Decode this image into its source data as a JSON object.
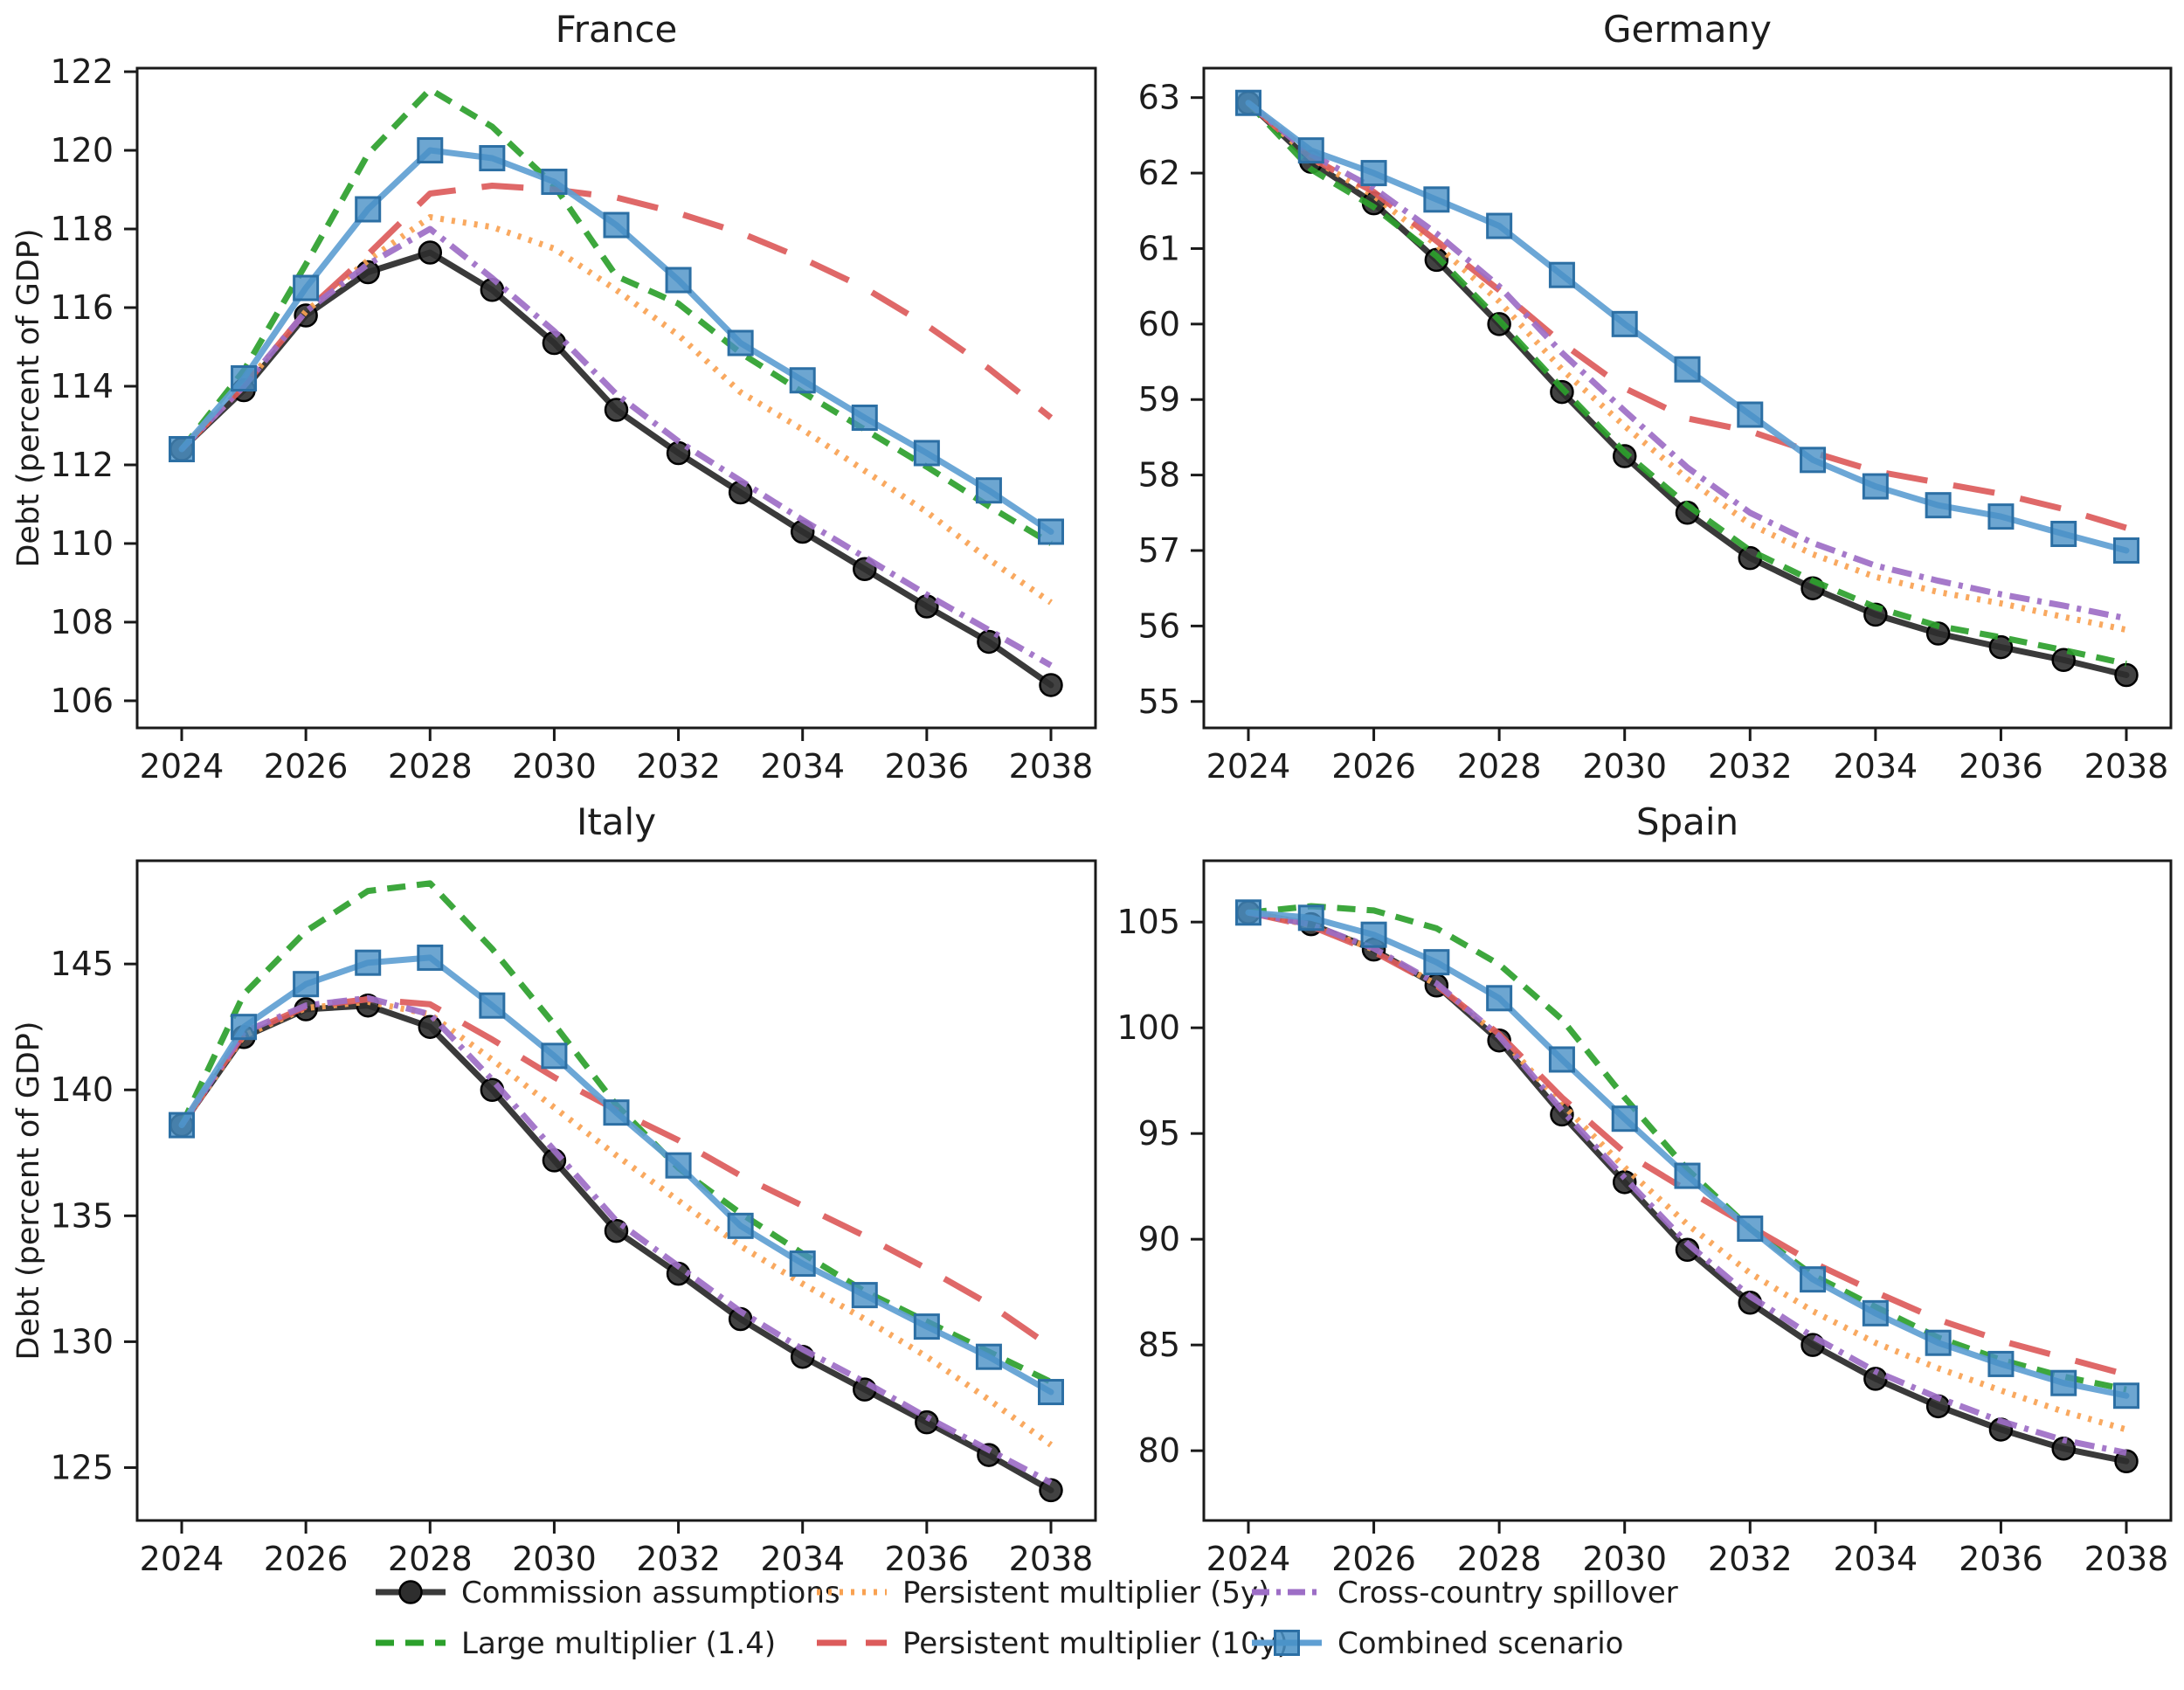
{
  "figure": {
    "ylabel": "Debt (percent of GDP)",
    "years": [
      2024,
      2025,
      2026,
      2027,
      2028,
      2029,
      2030,
      2031,
      2032,
      2033,
      2034,
      2035,
      2036,
      2037,
      2038
    ],
    "xticks": [
      2024,
      2026,
      2028,
      2030,
      2032,
      2034,
      2036,
      2038
    ]
  },
  "scenarios": [
    {
      "id": "commission",
      "label": "Commission assumptions",
      "color": "#3a3a3a",
      "line": "solid",
      "marker": "circle",
      "marker_fill": "#2e2e2e",
      "marker_edge": "#000000"
    },
    {
      "id": "large_multiplier",
      "label": "Large multiplier (1.4)",
      "color": "#2ca02c",
      "line": "dashed",
      "marker": "none"
    },
    {
      "id": "persistent_5y",
      "label": "Persistent multiplier (5y)",
      "color": "#f9a252",
      "line": "dotted",
      "marker": "none"
    },
    {
      "id": "persistent_10y",
      "label": "Persistent multiplier (10y)",
      "color": "#dc5b5b",
      "line": "longdash",
      "marker": "none"
    },
    {
      "id": "spillover",
      "label": "Cross-country spillover",
      "color": "#9d6ec6",
      "line": "dashdot",
      "marker": "none"
    },
    {
      "id": "combined",
      "label": "Combined scenario",
      "color": "#5f9fd3",
      "line": "solid",
      "marker": "square",
      "marker_fill": "#4890c6",
      "marker_edge": "#2c6fa4"
    }
  ],
  "chart_data": [
    {
      "type": "line",
      "title": "France",
      "ylabel": "Debt (percent of GDP)",
      "x": [
        2024,
        2025,
        2026,
        2027,
        2028,
        2029,
        2030,
        2031,
        2032,
        2033,
        2034,
        2035,
        2036,
        2037,
        2038
      ],
      "yticks": [
        106,
        108,
        110,
        112,
        114,
        116,
        118,
        120,
        122
      ],
      "ylim": [
        105.31,
        122.09
      ],
      "series": [
        {
          "name": "Commission assumptions",
          "values": [
            112.4,
            113.9,
            115.8,
            116.9,
            117.4,
            116.45,
            115.1,
            113.4,
            112.3,
            111.3,
            110.3,
            109.35,
            108.4,
            107.5,
            106.4
          ]
        },
        {
          "name": "Large multiplier (1.4)",
          "values": [
            112.4,
            114.4,
            117.1,
            119.9,
            121.55,
            120.6,
            119.1,
            116.8,
            116.1,
            114.85,
            113.85,
            112.9,
            111.95,
            110.95,
            110.0
          ]
        },
        {
          "name": "Persistent multiplier (5y)",
          "values": [
            112.4,
            114.0,
            115.9,
            117.2,
            118.3,
            118.05,
            117.5,
            116.45,
            115.3,
            113.85,
            112.9,
            111.85,
            110.8,
            109.6,
            108.5
          ]
        },
        {
          "name": "Persistent multiplier (10y)",
          "values": [
            112.4,
            114.0,
            115.9,
            117.35,
            118.9,
            119.1,
            119.0,
            118.8,
            118.4,
            117.9,
            117.25,
            116.5,
            115.55,
            114.45,
            113.2
          ]
        },
        {
          "name": "Cross-country spillover",
          "values": [
            112.4,
            114.0,
            115.9,
            117.1,
            118.0,
            116.75,
            115.4,
            113.8,
            112.6,
            111.6,
            110.6,
            109.65,
            108.7,
            107.8,
            106.9
          ]
        },
        {
          "name": "Combined scenario",
          "values": [
            112.4,
            114.2,
            116.5,
            118.5,
            120.0,
            119.8,
            119.2,
            118.1,
            116.7,
            115.1,
            114.15,
            113.2,
            112.3,
            111.35,
            110.3
          ]
        }
      ]
    },
    {
      "type": "line",
      "title": "Germany",
      "ylabel": null,
      "x": [
        2024,
        2025,
        2026,
        2027,
        2028,
        2029,
        2030,
        2031,
        2032,
        2033,
        2034,
        2035,
        2036,
        2037,
        2038
      ],
      "yticks": [
        55,
        56,
        57,
        58,
        59,
        60,
        61,
        62,
        63
      ],
      "ylim": [
        54.65,
        63.39
      ],
      "series": [
        {
          "name": "Commission assumptions",
          "values": [
            62.93,
            62.15,
            61.6,
            60.85,
            60.0,
            59.1,
            58.25,
            57.5,
            56.9,
            56.5,
            56.15,
            55.9,
            55.72,
            55.55,
            55.35
          ]
        },
        {
          "name": "Large multiplier (1.4)",
          "values": [
            62.93,
            62.05,
            61.55,
            60.9,
            60.05,
            59.15,
            58.3,
            57.6,
            57.0,
            56.6,
            56.25,
            56.0,
            55.85,
            55.68,
            55.5
          ]
        },
        {
          "name": "Persistent multiplier (5y)",
          "values": [
            62.93,
            62.2,
            61.7,
            61.05,
            60.3,
            59.4,
            58.65,
            57.95,
            57.35,
            56.95,
            56.65,
            56.45,
            56.3,
            56.12,
            55.95
          ]
        },
        {
          "name": "Persistent multiplier (10y)",
          "values": [
            62.93,
            62.2,
            61.75,
            61.1,
            60.45,
            59.75,
            59.15,
            58.75,
            58.58,
            58.3,
            58.05,
            57.9,
            57.75,
            57.55,
            57.3
          ]
        },
        {
          "name": "Cross-country spillover",
          "values": [
            62.93,
            62.25,
            61.8,
            61.2,
            60.5,
            59.62,
            58.85,
            58.1,
            57.5,
            57.1,
            56.8,
            56.6,
            56.42,
            56.27,
            56.1
          ]
        },
        {
          "name": "Combined scenario",
          "values": [
            62.93,
            62.3,
            62.0,
            61.65,
            61.3,
            60.65,
            60.0,
            59.4,
            58.8,
            58.2,
            57.85,
            57.6,
            57.45,
            57.22,
            57.0
          ]
        }
      ]
    },
    {
      "type": "line",
      "title": "Italy",
      "ylabel": "Debt (percent of GDP)",
      "x": [
        2024,
        2025,
        2026,
        2027,
        2028,
        2029,
        2030,
        2031,
        2032,
        2033,
        2034,
        2035,
        2036,
        2037,
        2038
      ],
      "yticks": [
        125,
        130,
        135,
        140,
        145
      ],
      "ylim": [
        122.9,
        149.1
      ],
      "series": [
        {
          "name": "Commission assumptions",
          "values": [
            138.6,
            142.1,
            143.2,
            143.35,
            142.5,
            140.0,
            137.2,
            134.4,
            132.7,
            130.9,
            129.4,
            128.1,
            126.8,
            125.5,
            124.1
          ]
        },
        {
          "name": "Large multiplier (1.4)",
          "values": [
            138.6,
            143.8,
            146.3,
            147.9,
            148.2,
            145.6,
            142.6,
            139.4,
            136.9,
            135.1,
            133.5,
            132.0,
            130.8,
            129.6,
            128.4
          ]
        },
        {
          "name": "Persistent multiplier (5y)",
          "values": [
            138.6,
            142.15,
            143.25,
            143.5,
            143.0,
            141.2,
            139.3,
            137.4,
            135.6,
            133.8,
            132.3,
            130.9,
            129.4,
            127.7,
            125.9
          ]
        },
        {
          "name": "Persistent multiplier (10y)",
          "values": [
            138.6,
            142.2,
            143.3,
            143.6,
            143.4,
            142.0,
            140.5,
            139.2,
            138.0,
            136.6,
            135.4,
            134.2,
            132.9,
            131.5,
            129.8
          ]
        },
        {
          "name": "Cross-country spillover",
          "values": [
            138.6,
            142.3,
            143.35,
            143.65,
            143.0,
            140.4,
            137.6,
            134.8,
            133.0,
            131.2,
            129.7,
            128.4,
            127.0,
            125.7,
            124.4
          ]
        },
        {
          "name": "Combined scenario",
          "values": [
            138.6,
            142.5,
            144.2,
            145.05,
            145.25,
            143.35,
            141.35,
            139.1,
            137.0,
            134.6,
            133.1,
            131.85,
            130.6,
            129.4,
            128.0
          ]
        }
      ]
    },
    {
      "type": "line",
      "title": "Spain",
      "ylabel": null,
      "x": [
        2024,
        2025,
        2026,
        2027,
        2028,
        2029,
        2030,
        2031,
        2032,
        2033,
        2034,
        2035,
        2036,
        2037,
        2038
      ],
      "yticks": [
        80,
        85,
        90,
        95,
        100,
        105
      ],
      "ylim": [
        76.7,
        107.9
      ],
      "series": [
        {
          "name": "Commission assumptions",
          "values": [
            105.45,
            104.9,
            103.7,
            102.0,
            99.4,
            95.9,
            92.7,
            89.5,
            87.0,
            85.0,
            83.4,
            82.1,
            81.0,
            80.1,
            79.5
          ]
        },
        {
          "name": "Large multiplier (1.4)",
          "values": [
            105.45,
            105.75,
            105.55,
            104.7,
            103.0,
            100.4,
            96.7,
            93.3,
            90.5,
            88.3,
            86.8,
            85.35,
            84.3,
            83.5,
            82.9
          ]
        },
        {
          "name": "Persistent multiplier (5y)",
          "values": [
            105.45,
            104.85,
            103.7,
            102.05,
            99.6,
            96.4,
            93.4,
            90.7,
            88.4,
            86.6,
            85.1,
            83.9,
            82.85,
            81.85,
            81.0
          ]
        },
        {
          "name": "Persistent multiplier (10y)",
          "values": [
            105.45,
            104.8,
            103.6,
            102.0,
            99.7,
            96.7,
            94.1,
            92.3,
            90.6,
            88.9,
            87.5,
            86.2,
            85.2,
            84.4,
            83.6
          ]
        },
        {
          "name": "Cross-country spillover",
          "values": [
            105.45,
            104.88,
            103.75,
            102.1,
            99.6,
            96.1,
            92.9,
            89.8,
            87.3,
            85.4,
            83.75,
            82.5,
            81.4,
            80.5,
            79.9
          ]
        },
        {
          "name": "Combined scenario",
          "values": [
            105.45,
            105.2,
            104.4,
            103.1,
            101.4,
            98.5,
            95.7,
            93.0,
            90.5,
            88.1,
            86.5,
            85.1,
            84.1,
            83.2,
            82.6
          ]
        }
      ]
    }
  ]
}
